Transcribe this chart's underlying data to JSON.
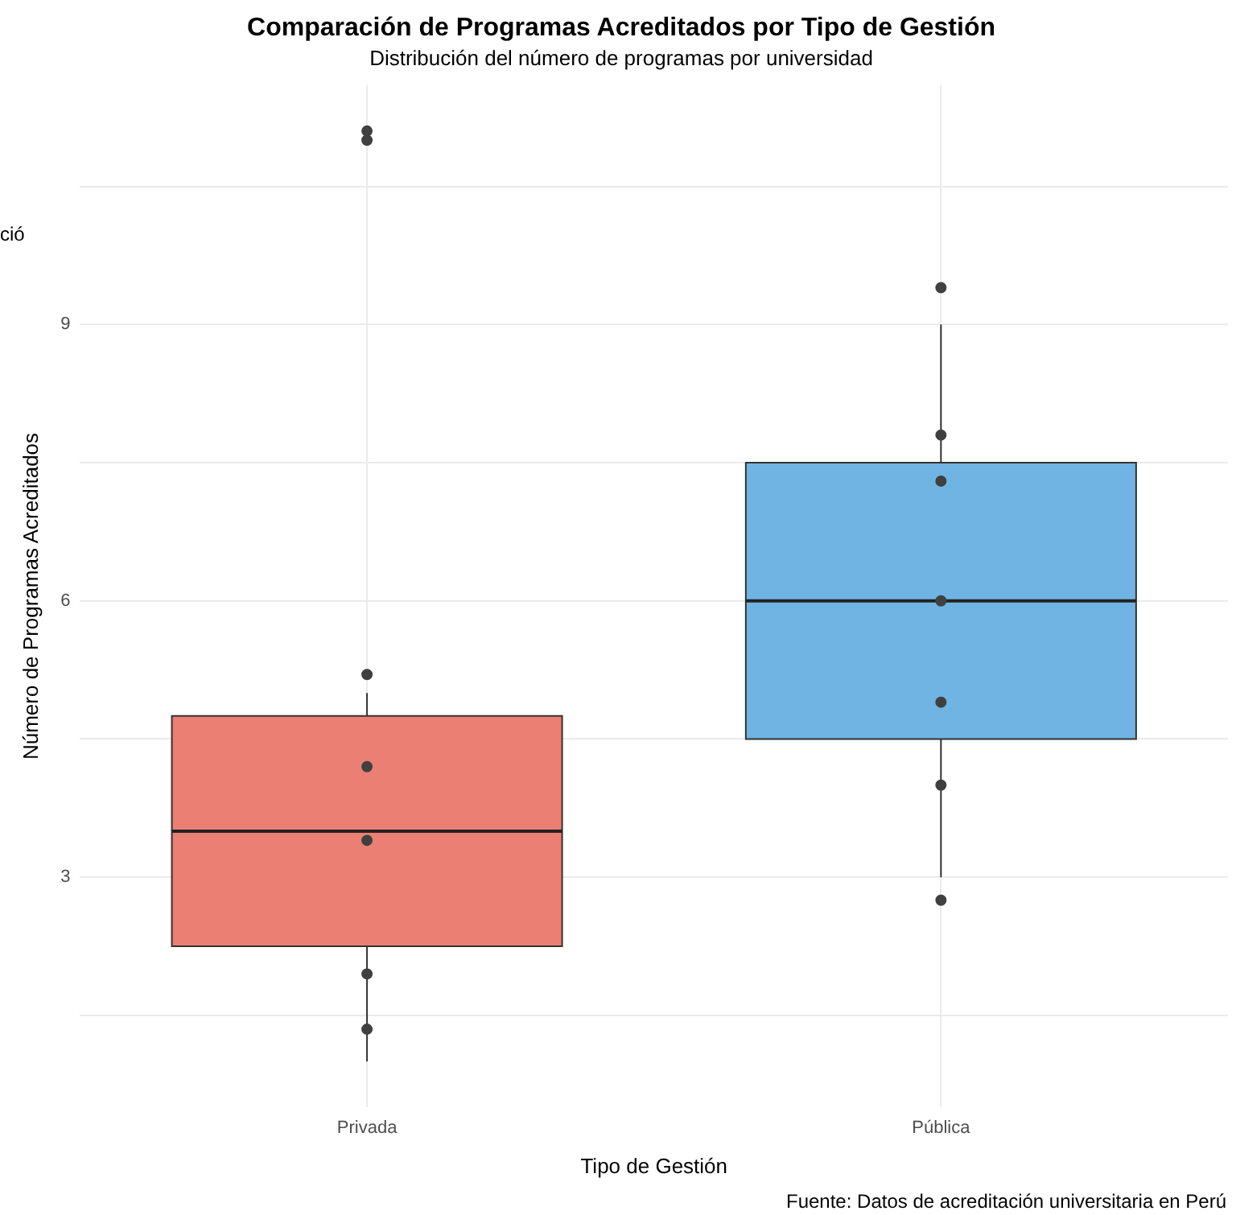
{
  "chart_data": {
    "type": "box",
    "title": "Comparación de Programas Acreditados por Tipo de Gestión",
    "subtitle": "Distribución del número de programas por universidad",
    "xlabel": "Tipo de Gestión",
    "ylabel": "Número de Programas Acreditados",
    "annotations": [
      "Fuente: Datos de acreditación universitaria en Perú",
      "ció"
    ],
    "categories": [
      "Privada",
      "Pública"
    ],
    "series": [
      {
        "colors": [
          "#ec7f73",
          "#6fb4e2"
        ],
        "boxes": [
          {
            "low": 1.0,
            "q1": 2.25,
            "median": 3.5,
            "q3": 4.75,
            "high": 5.0
          },
          {
            "low": 3.0,
            "q1": 4.5,
            "median": 6.0,
            "q3": 7.5,
            "high": 9.0
          }
        ]
      },
      {
        "type": "scatter",
        "color": "#404040",
        "x": [
          "Privada",
          "Privada",
          "Privada",
          "Privada",
          "Privada",
          "Privada",
          "Privada",
          "Pública",
          "Pública",
          "Pública",
          "Pública",
          "Pública",
          "Pública",
          "Pública"
        ],
        "values": [
          11.1,
          11.0,
          5.2,
          4.2,
          3.4,
          1.95,
          1.35,
          9.4,
          7.8,
          7.3,
          6.0,
          4.9,
          4.0,
          2.75
        ]
      }
    ],
    "ylim": [
      0.5,
      11.6
    ],
    "yticks": [
      {
        "value": 1.5,
        "label": null
      },
      3,
      {
        "value": 4.5,
        "label": null
      },
      6,
      {
        "value": 7.5,
        "label": null
      },
      9,
      {
        "value": 10.5,
        "label": null
      }
    ],
    "grid": true,
    "legend": false,
    "marker": "circle"
  }
}
